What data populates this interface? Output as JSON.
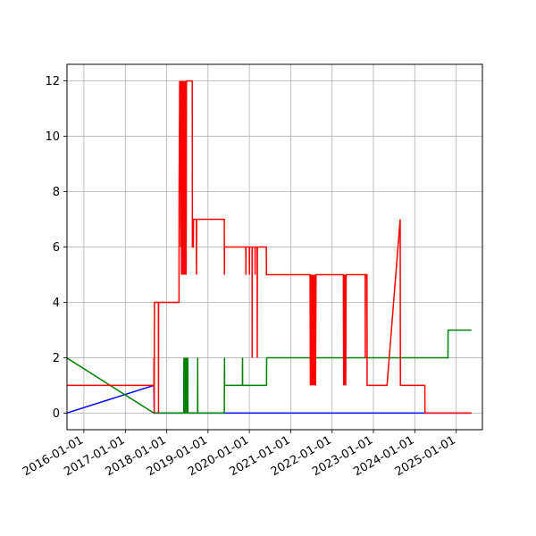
{
  "chart_data": {
    "type": "line",
    "title": "",
    "xlabel": "",
    "ylabel": "",
    "x_axis": "date",
    "xlim": [
      "2015-08-05",
      "2025-08-20"
    ],
    "ylim": [
      -0.6,
      12.6
    ],
    "grid": true,
    "legend": "none",
    "x_ticks": [
      "2016-01-01",
      "2017-01-01",
      "2018-01-01",
      "2019-01-01",
      "2020-01-01",
      "2021-01-01",
      "2022-01-01",
      "2023-01-01",
      "2024-01-01",
      "2025-01-01"
    ],
    "y_ticks": [
      0,
      2,
      4,
      6,
      8,
      10,
      12
    ],
    "series": [
      {
        "color": "#0000ff",
        "points": [
          [
            "2015-08-01",
            0
          ],
          [
            "2017-09-10",
            1
          ],
          [
            "2017-09-14",
            0
          ],
          [
            "2025-05-15",
            0
          ]
        ]
      },
      {
        "color": "#008000",
        "points": [
          [
            "2015-08-01",
            2
          ],
          [
            "2017-09-10",
            0
          ],
          [
            "2018-06-01",
            0
          ],
          [
            "2018-06-02",
            2
          ],
          [
            "2018-06-03",
            0
          ],
          [
            "2018-06-08",
            0
          ],
          [
            "2018-06-09",
            2
          ],
          [
            "2018-06-10",
            0
          ],
          [
            "2018-06-15",
            0
          ],
          [
            "2018-06-16",
            2
          ],
          [
            "2018-06-17",
            0
          ],
          [
            "2018-06-22",
            0
          ],
          [
            "2018-06-23",
            2
          ],
          [
            "2018-06-24",
            0
          ],
          [
            "2018-06-29",
            0
          ],
          [
            "2018-06-30",
            2
          ],
          [
            "2018-07-01",
            0
          ],
          [
            "2018-07-06",
            0
          ],
          [
            "2018-07-07",
            2
          ],
          [
            "2018-07-08",
            0
          ],
          [
            "2018-10-01",
            0
          ],
          [
            "2018-10-02",
            2
          ],
          [
            "2018-10-03",
            0
          ],
          [
            "2019-05-25",
            0
          ],
          [
            "2019-05-26",
            1
          ],
          [
            "2019-05-27",
            2
          ],
          [
            "2019-05-28",
            1
          ],
          [
            "2019-11-01",
            1
          ],
          [
            "2019-11-02",
            2
          ],
          [
            "2019-11-03",
            1
          ],
          [
            "2020-06-01",
            1
          ],
          [
            "2020-06-02",
            2
          ],
          [
            "2024-10-20",
            2
          ],
          [
            "2024-10-21",
            3
          ],
          [
            "2025-05-15",
            3
          ]
        ]
      },
      {
        "color": "#ff0000",
        "points": [
          [
            "2015-08-01",
            1
          ],
          [
            "2017-09-10",
            1
          ],
          [
            "2017-09-11",
            2
          ],
          [
            "2017-09-13",
            0
          ],
          [
            "2017-09-15",
            4
          ],
          [
            "2017-10-20",
            4
          ],
          [
            "2017-10-21",
            0
          ],
          [
            "2017-10-22",
            4
          ],
          [
            "2018-04-20",
            4
          ],
          [
            "2018-04-21",
            8
          ],
          [
            "2018-04-24",
            10
          ],
          [
            "2018-04-26",
            12
          ],
          [
            "2018-04-28",
            8
          ],
          [
            "2018-05-02",
            12
          ],
          [
            "2018-05-05",
            6
          ],
          [
            "2018-05-08",
            12
          ],
          [
            "2018-05-12",
            5
          ],
          [
            "2018-05-15",
            12
          ],
          [
            "2018-05-18",
            5
          ],
          [
            "2018-05-22",
            12
          ],
          [
            "2018-05-25",
            5
          ],
          [
            "2018-05-28",
            12
          ],
          [
            "2018-06-01",
            5
          ],
          [
            "2018-06-05",
            12
          ],
          [
            "2018-06-08",
            5
          ],
          [
            "2018-06-12",
            12
          ],
          [
            "2018-06-15",
            5
          ],
          [
            "2018-06-18",
            12
          ],
          [
            "2018-06-22",
            5
          ],
          [
            "2018-06-25",
            12
          ],
          [
            "2018-08-15",
            12
          ],
          [
            "2018-08-16",
            6
          ],
          [
            "2018-08-25",
            6
          ],
          [
            "2018-08-26",
            7
          ],
          [
            "2018-09-20",
            7
          ],
          [
            "2018-09-21",
            5
          ],
          [
            "2018-09-23",
            7
          ],
          [
            "2019-05-25",
            7
          ],
          [
            "2019-05-26",
            5
          ],
          [
            "2019-05-27",
            6
          ],
          [
            "2019-12-01",
            6
          ],
          [
            "2019-12-02",
            5
          ],
          [
            "2019-12-03",
            6
          ],
          [
            "2020-01-01",
            6
          ],
          [
            "2020-01-02",
            5
          ],
          [
            "2020-01-03",
            6
          ],
          [
            "2020-01-25",
            6
          ],
          [
            "2020-01-26",
            2
          ],
          [
            "2020-01-27",
            6
          ],
          [
            "2020-02-20",
            6
          ],
          [
            "2020-02-21",
            5
          ],
          [
            "2020-02-22",
            6
          ],
          [
            "2020-03-10",
            6
          ],
          [
            "2020-03-11",
            2
          ],
          [
            "2020-03-12",
            6
          ],
          [
            "2020-05-30",
            6
          ],
          [
            "2020-05-31",
            5
          ],
          [
            "2021-06-20",
            5
          ],
          [
            "2021-06-23",
            1
          ],
          [
            "2021-06-26",
            5
          ],
          [
            "2021-07-01",
            1
          ],
          [
            "2021-07-04",
            5
          ],
          [
            "2021-07-08",
            1
          ],
          [
            "2021-07-12",
            5
          ],
          [
            "2021-07-16",
            1
          ],
          [
            "2021-07-20",
            5
          ],
          [
            "2021-07-24",
            1
          ],
          [
            "2021-07-28",
            5
          ],
          [
            "2021-08-01",
            1
          ],
          [
            "2021-08-04",
            5
          ],
          [
            "2021-08-08",
            1
          ],
          [
            "2021-08-12",
            5
          ],
          [
            "2022-04-10",
            5
          ],
          [
            "2022-04-13",
            1
          ],
          [
            "2022-04-16",
            5
          ],
          [
            "2022-04-20",
            1
          ],
          [
            "2022-04-24",
            5
          ],
          [
            "2022-05-01",
            1
          ],
          [
            "2022-05-05",
            5
          ],
          [
            "2022-10-20",
            5
          ],
          [
            "2022-10-21",
            2
          ],
          [
            "2022-10-22",
            5
          ],
          [
            "2022-11-05",
            5
          ],
          [
            "2022-11-06",
            1
          ],
          [
            "2023-05-01",
            1
          ],
          [
            "2023-08-25",
            7
          ],
          [
            "2023-08-27",
            1
          ],
          [
            "2024-03-30",
            1
          ],
          [
            "2024-03-31",
            0
          ],
          [
            "2025-05-15",
            0
          ]
        ]
      }
    ]
  }
}
